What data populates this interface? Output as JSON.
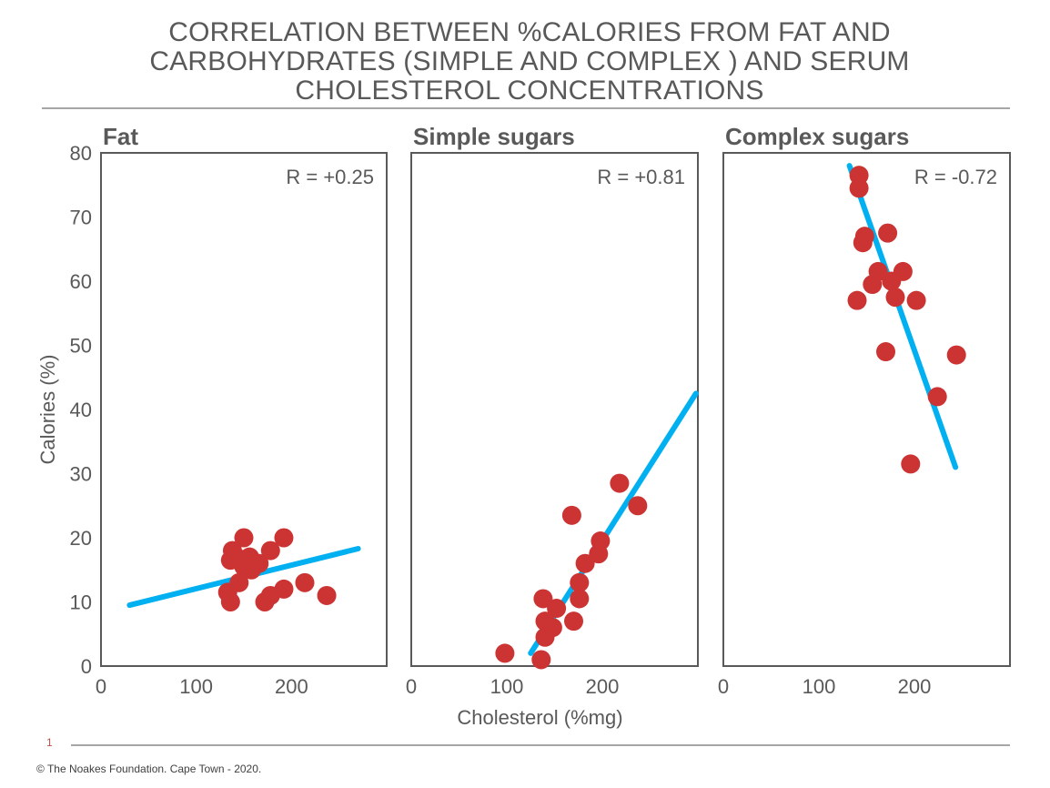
{
  "title": "CORRELATION BETWEEN %CALORIES FROM FAT AND\nCARBOHYDRATES (SIMPLE AND COMPLEX ) AND SERUM\nCHOLESTEROL CONCENTRATIONS",
  "slide_number": "1",
  "footer": "© The Noakes Foundation. Cape Town - 2020.",
  "colors": {
    "points": "#cc3333",
    "trend": "#00b0f0",
    "axis": "#595959",
    "frame": "#595959",
    "rule": "#a6a6a6"
  },
  "chart_data": [
    {
      "type": "scatter",
      "title": "Fat",
      "annotation": "R = +0.25",
      "xlim": [
        0,
        300
      ],
      "ylim": [
        0,
        80
      ],
      "xticks": [
        0,
        100,
        200
      ],
      "yticks": [
        0,
        10,
        20,
        30,
        40,
        50,
        60,
        70,
        80
      ],
      "ylabel": "Calories (%)",
      "xlabel": "",
      "points": [
        [
          138,
          18
        ],
        [
          150,
          20
        ],
        [
          142,
          17
        ],
        [
          144,
          16.5
        ],
        [
          136,
          16.5
        ],
        [
          156,
          17
        ],
        [
          150,
          15.5
        ],
        [
          145,
          13
        ],
        [
          158,
          15
        ],
        [
          166,
          16
        ],
        [
          178,
          18
        ],
        [
          192,
          20
        ],
        [
          133,
          11.5
        ],
        [
          136,
          10
        ],
        [
          172,
          10
        ],
        [
          178,
          11
        ],
        [
          192,
          12
        ],
        [
          214,
          13
        ],
        [
          237,
          11
        ]
      ],
      "trend": [
        [
          30,
          9.5
        ],
        [
          270,
          18.3
        ]
      ]
    },
    {
      "type": "scatter",
      "title": "Simple sugars",
      "annotation": "R = +0.81",
      "xlim": [
        0,
        300
      ],
      "ylim": [
        0,
        80
      ],
      "xticks": [
        0,
        100,
        200
      ],
      "yticks": [],
      "ylabel": "",
      "xlabel": "Cholesterol (%mg)",
      "points": [
        [
          98,
          2
        ],
        [
          136,
          1
        ],
        [
          138,
          10.5
        ],
        [
          140,
          4.5
        ],
        [
          140,
          7
        ],
        [
          148,
          6
        ],
        [
          152,
          9
        ],
        [
          168,
          23.5
        ],
        [
          170,
          7
        ],
        [
          176,
          13
        ],
        [
          176,
          10.5
        ],
        [
          182,
          16
        ],
        [
          196,
          17.5
        ],
        [
          198,
          19.5
        ],
        [
          218,
          28.5
        ],
        [
          237,
          25
        ]
      ],
      "trend": [
        [
          125,
          2
        ],
        [
          298,
          42.5
        ]
      ]
    },
    {
      "type": "scatter",
      "title": "Complex sugars",
      "annotation": "R = -0.72",
      "xlim": [
        0,
        300
      ],
      "ylim": [
        0,
        80
      ],
      "xticks": [
        0,
        100,
        200
      ],
      "yticks": [],
      "ylabel": "",
      "xlabel": "",
      "points": [
        [
          142,
          76.5
        ],
        [
          142,
          74.5
        ],
        [
          148,
          67
        ],
        [
          146,
          66
        ],
        [
          172,
          67.5
        ],
        [
          140,
          57
        ],
        [
          156,
          59.5
        ],
        [
          162,
          61.5
        ],
        [
          176,
          60
        ],
        [
          180,
          57.5
        ],
        [
          188,
          61.5
        ],
        [
          202,
          57
        ],
        [
          170,
          49
        ],
        [
          244,
          48.5
        ],
        [
          224,
          42
        ],
        [
          196,
          31.5
        ]
      ],
      "trend": [
        [
          132,
          78
        ],
        [
          243,
          31
        ]
      ]
    }
  ]
}
